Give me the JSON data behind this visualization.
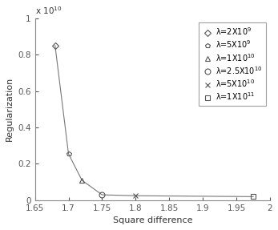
{
  "x_values": [
    1.68,
    1.7,
    1.72,
    1.75,
    1.8,
    1.975
  ],
  "y_values": [
    8500000000.0,
    2550000000.0,
    1100000000.0,
    300000000.0,
    250000000.0,
    200000000.0
  ],
  "markers": [
    "D",
    "p",
    "^",
    "o",
    "x",
    "s"
  ],
  "marker_sizes": [
    4,
    4,
    5,
    5,
    5,
    4
  ],
  "marker_filled": [
    false,
    false,
    false,
    false,
    false,
    false
  ],
  "legend_labels": [
    "λ=2X10$^{9}$",
    "λ=5X10$^{9}$",
    "λ=1X10$^{10}$",
    "λ=2.5X10$^{10}$",
    "λ=5X10$^{10}$",
    "λ=1X10$^{11}$"
  ],
  "legend_markers": [
    "D",
    "p",
    "^",
    "o",
    "x",
    "s"
  ],
  "xlabel": "Square difference",
  "ylabel": "Regularization",
  "xlim": [
    1.65,
    2.0
  ],
  "ylim": [
    0,
    10000000000.0
  ],
  "xticks": [
    1.65,
    1.7,
    1.75,
    1.8,
    1.85,
    1.9,
    1.95,
    2.0
  ],
  "xtick_labels": [
    "1.65",
    "1.7",
    "1.75",
    "1.8",
    "1.85",
    "1.9",
    "1.95",
    "2"
  ],
  "yticks": [
    0,
    2000000000.0,
    4000000000.0,
    6000000000.0,
    8000000000.0,
    10000000000.0
  ],
  "ytick_labels": [
    "0",
    "0.2",
    "0.4",
    "0.6",
    "0.8",
    "1"
  ],
  "line_color": "#777777",
  "marker_color": "#555555",
  "background_color": "#ffffff",
  "axis_color": "#aaaaaa",
  "fontsize": 8,
  "tick_fontsize": 7.5
}
